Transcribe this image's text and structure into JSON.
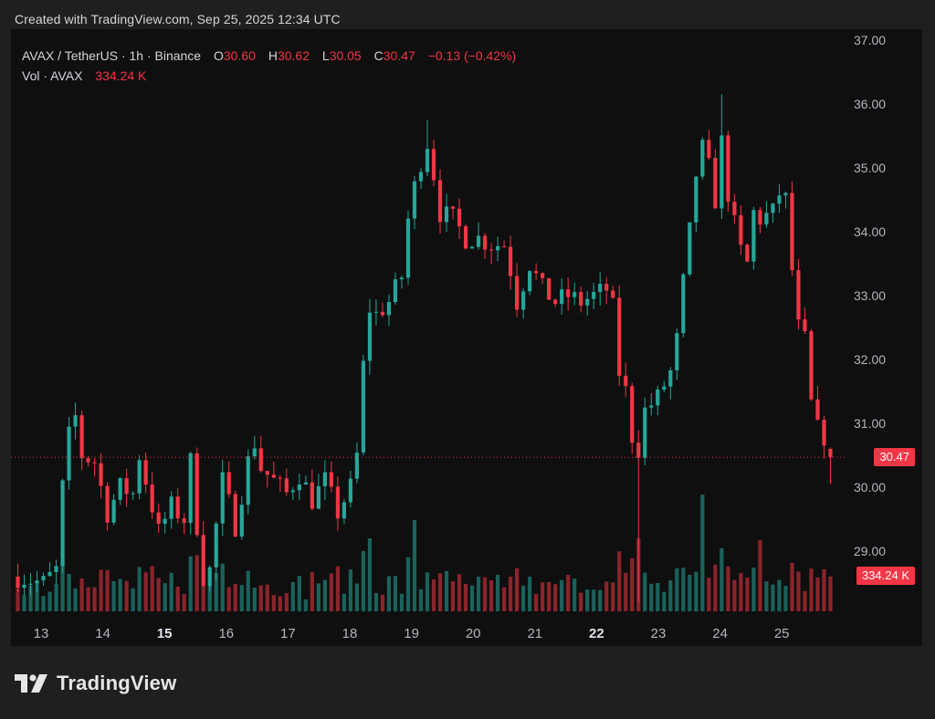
{
  "header": {
    "credit": "Created with TradingView.com, Sep 25, 2025 12:34 UTC"
  },
  "legend": {
    "symbol": "AVAX / TetherUS · 1h · Binance",
    "o_label": "O",
    "o_value": "30.60",
    "h_label": "H",
    "h_value": "30.62",
    "l_label": "L",
    "l_value": "30.05",
    "c_label": "C",
    "c_value": "30.47",
    "change": "−0.13 (−0.42%)",
    "vol_label": "Vol · AVAX",
    "vol_value": "334.24 K"
  },
  "tags": {
    "last_price": "30.47",
    "last_volume": "334.24 K"
  },
  "footer": {
    "brand": "TradingView"
  },
  "colors": {
    "up": "#26a69a",
    "down": "#f23645",
    "background": "#0f0f0f",
    "axis_text": "#b2b5be",
    "last_price_line": "#f23645"
  },
  "chart_data": {
    "type": "candlestick",
    "interval": "1h",
    "ylim": [
      28.0,
      37.0
    ],
    "y_ticks": [
      "37.00",
      "36.00",
      "35.00",
      "34.00",
      "33.00",
      "32.00",
      "31.00",
      "30.00",
      "29.00"
    ],
    "x_ticks": [
      {
        "label": "13",
        "bold": false
      },
      {
        "label": "14",
        "bold": false
      },
      {
        "label": "15",
        "bold": true
      },
      {
        "label": "16",
        "bold": false
      },
      {
        "label": "17",
        "bold": false
      },
      {
        "label": "18",
        "bold": false
      },
      {
        "label": "19",
        "bold": false
      },
      {
        "label": "20",
        "bold": false
      },
      {
        "label": "21",
        "bold": false
      },
      {
        "label": "22",
        "bold": true
      },
      {
        "label": "23",
        "bold": false
      },
      {
        "label": "24",
        "bold": false
      },
      {
        "label": "25",
        "bold": false
      }
    ],
    "last_price": 30.47,
    "close_path": [
      [
        0,
        28.6
      ],
      [
        4,
        28.5
      ],
      [
        6,
        28.7
      ],
      [
        7,
        30.0
      ],
      [
        8,
        30.8
      ],
      [
        9,
        31.1
      ],
      [
        10,
        30.5
      ],
      [
        12,
        30.4
      ],
      [
        14,
        29.6
      ],
      [
        16,
        30.0
      ],
      [
        18,
        29.9
      ],
      [
        19,
        30.5
      ],
      [
        20,
        30.1
      ],
      [
        22,
        29.3
      ],
      [
        24,
        29.7
      ],
      [
        26,
        29.5
      ],
      [
        27,
        30.4
      ],
      [
        28,
        29.4
      ],
      [
        29,
        28.6
      ],
      [
        30,
        28.7
      ],
      [
        32,
        30.1
      ],
      [
        34,
        29.4
      ],
      [
        36,
        30.4
      ],
      [
        37,
        30.7
      ],
      [
        38,
        30.3
      ],
      [
        40,
        30.1
      ],
      [
        42,
        29.9
      ],
      [
        44,
        30.2
      ],
      [
        46,
        29.8
      ],
      [
        48,
        30.1
      ],
      [
        50,
        29.6
      ],
      [
        52,
        30.0
      ],
      [
        53,
        30.5
      ],
      [
        54,
        31.9
      ],
      [
        55,
        32.8
      ],
      [
        56,
        32.7
      ],
      [
        58,
        32.9
      ],
      [
        60,
        33.3
      ],
      [
        61,
        34.2
      ],
      [
        62,
        34.7
      ],
      [
        63,
        35.1
      ],
      [
        64,
        35.4
      ],
      [
        65,
        34.9
      ],
      [
        66,
        34.3
      ],
      [
        68,
        34.2
      ],
      [
        70,
        33.9
      ],
      [
        72,
        33.9
      ],
      [
        74,
        33.8
      ],
      [
        76,
        33.8
      ],
      [
        77,
        33.4
      ],
      [
        78,
        32.9
      ],
      [
        80,
        33.5
      ],
      [
        82,
        33.1
      ],
      [
        84,
        32.9
      ],
      [
        86,
        33.0
      ],
      [
        88,
        32.9
      ],
      [
        90,
        33.0
      ],
      [
        92,
        33.1
      ],
      [
        93,
        32.8
      ],
      [
        94,
        31.8
      ],
      [
        95,
        31.5
      ],
      [
        96,
        30.8
      ],
      [
        97,
        30.6
      ],
      [
        98,
        31.2
      ],
      [
        100,
        31.4
      ],
      [
        102,
        31.8
      ],
      [
        103,
        32.3
      ],
      [
        104,
        33.2
      ],
      [
        105,
        34.0
      ],
      [
        106,
        34.9
      ],
      [
        107,
        35.3
      ],
      [
        108,
        35.0
      ],
      [
        109,
        34.5
      ],
      [
        110,
        35.4
      ],
      [
        111,
        34.6
      ],
      [
        112,
        34.1
      ],
      [
        113,
        33.7
      ],
      [
        114,
        33.5
      ],
      [
        115,
        34.3
      ],
      [
        116,
        34.2
      ],
      [
        118,
        34.3
      ],
      [
        119,
        34.6
      ],
      [
        120,
        34.5
      ],
      [
        121,
        33.4
      ],
      [
        122,
        32.5
      ],
      [
        123,
        32.3
      ],
      [
        124,
        31.3
      ],
      [
        125,
        30.9
      ],
      [
        126,
        30.8
      ],
      [
        127,
        30.47
      ]
    ],
    "wick_extremes": [
      {
        "index": 97,
        "low": 28.2
      },
      {
        "index": 110,
        "high": 36.15
      },
      {
        "index": 64,
        "high": 35.75
      },
      {
        "index": 29,
        "low": 28.45
      }
    ]
  }
}
